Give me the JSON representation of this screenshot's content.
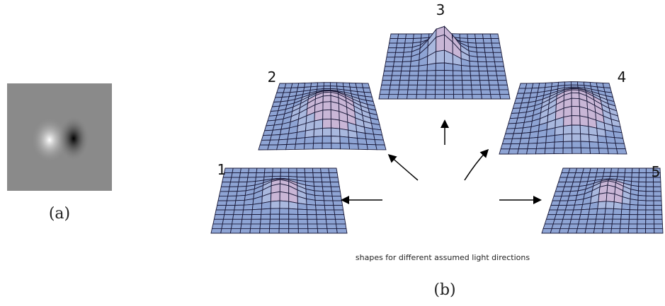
{
  "panel_a": {
    "label": "(a)"
  },
  "panel_b": {
    "surfaces": [
      {
        "label": "1"
      },
      {
        "label": "2"
      },
      {
        "label": "3"
      },
      {
        "label": "4"
      },
      {
        "label": "5"
      }
    ],
    "caption": "shapes for different assumed light directions",
    "label": "(b)"
  }
}
